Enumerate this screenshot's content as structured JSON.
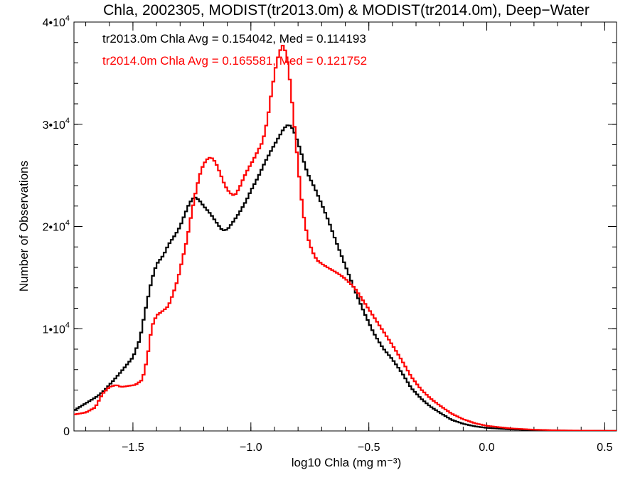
{
  "chart_data": {
    "type": "line",
    "title": "Chla, 2002305, MODIST(tr2013.0m) & MODIST(tr2014.0m), Deep−Water",
    "xlabel": "log10 Chla (mg m⁻³)",
    "ylabel": "Number of Observations",
    "xlim": [
      -1.75,
      0.55
    ],
    "ylim": [
      0,
      40000
    ],
    "xticks": [
      -1.5,
      -1.0,
      -0.5,
      0.0,
      0.5
    ],
    "xtick_labels": [
      "−1.5",
      "−1.0",
      "−0.5",
      "0.0",
      "0.5"
    ],
    "yticks": [
      0,
      10000,
      20000,
      30000,
      40000
    ],
    "ytick_labels": [
      {
        "mantissa": "0",
        "exp": ""
      },
      {
        "mantissa": "1•10",
        "exp": "4"
      },
      {
        "mantissa": "2•10",
        "exp": "4"
      },
      {
        "mantissa": "3•10",
        "exp": "4"
      },
      {
        "mantissa": "4•10",
        "exp": "4"
      }
    ],
    "grid": false,
    "step": true,
    "annotations": [
      {
        "text": "tr2013.0m Chla Avg = 0.154042, Med = 0.114193",
        "color": "#000000"
      },
      {
        "text": "tr2014.0m Chla Avg = 0.165581, Med = 0.121752",
        "color": "#ff0000"
      }
    ],
    "series": [
      {
        "color": "#000000",
        "points": [
          [
            -1.75,
            2000
          ],
          [
            -1.7,
            2700
          ],
          [
            -1.65,
            3400
          ],
          [
            -1.62,
            4000
          ],
          [
            -1.58,
            5000
          ],
          [
            -1.55,
            5800
          ],
          [
            -1.5,
            7200
          ],
          [
            -1.47,
            9000
          ],
          [
            -1.45,
            11500
          ],
          [
            -1.42,
            14800
          ],
          [
            -1.4,
            16300
          ],
          [
            -1.37,
            17200
          ],
          [
            -1.35,
            18200
          ],
          [
            -1.32,
            19200
          ],
          [
            -1.3,
            20000
          ],
          [
            -1.28,
            21200
          ],
          [
            -1.26,
            22300
          ],
          [
            -1.24,
            22900
          ],
          [
            -1.22,
            22600
          ],
          [
            -1.2,
            22000
          ],
          [
            -1.17,
            21200
          ],
          [
            -1.14,
            20200
          ],
          [
            -1.12,
            19600
          ],
          [
            -1.1,
            19700
          ],
          [
            -1.08,
            20300
          ],
          [
            -1.05,
            21300
          ],
          [
            -1.02,
            22500
          ],
          [
            -1.0,
            23500
          ],
          [
            -0.97,
            24800
          ],
          [
            -0.94,
            26300
          ],
          [
            -0.91,
            27600
          ],
          [
            -0.88,
            28800
          ],
          [
            -0.86,
            29600
          ],
          [
            -0.84,
            30000
          ],
          [
            -0.82,
            29500
          ],
          [
            -0.8,
            28200
          ],
          [
            -0.78,
            26700
          ],
          [
            -0.76,
            25200
          ],
          [
            -0.73,
            23800
          ],
          [
            -0.7,
            22200
          ],
          [
            -0.67,
            20500
          ],
          [
            -0.64,
            18600
          ],
          [
            -0.6,
            16200
          ],
          [
            -0.56,
            13800
          ],
          [
            -0.52,
            11600
          ],
          [
            -0.48,
            9600
          ],
          [
            -0.44,
            8100
          ],
          [
            -0.4,
            7000
          ],
          [
            -0.36,
            5700
          ],
          [
            -0.32,
            4200
          ],
          [
            -0.28,
            3200
          ],
          [
            -0.24,
            2400
          ],
          [
            -0.2,
            1800
          ],
          [
            -0.15,
            1100
          ],
          [
            -0.1,
            700
          ],
          [
            -0.05,
            450
          ],
          [
            0.0,
            300
          ],
          [
            0.1,
            150
          ],
          [
            0.2,
            80
          ],
          [
            0.3,
            40
          ],
          [
            0.4,
            20
          ],
          [
            0.55,
            10
          ]
        ]
      },
      {
        "color": "#ff0000",
        "points": [
          [
            -1.75,
            1600
          ],
          [
            -1.7,
            1800
          ],
          [
            -1.66,
            2300
          ],
          [
            -1.63,
            3600
          ],
          [
            -1.6,
            4300
          ],
          [
            -1.57,
            4500
          ],
          [
            -1.55,
            4300
          ],
          [
            -1.52,
            4400
          ],
          [
            -1.49,
            4500
          ],
          [
            -1.46,
            5000
          ],
          [
            -1.44,
            7000
          ],
          [
            -1.42,
            10200
          ],
          [
            -1.4,
            11300
          ],
          [
            -1.37,
            11800
          ],
          [
            -1.35,
            12200
          ],
          [
            -1.33,
            13400
          ],
          [
            -1.31,
            14800
          ],
          [
            -1.29,
            16800
          ],
          [
            -1.27,
            18800
          ],
          [
            -1.25,
            21500
          ],
          [
            -1.23,
            23800
          ],
          [
            -1.21,
            25600
          ],
          [
            -1.19,
            26500
          ],
          [
            -1.17,
            26800
          ],
          [
            -1.15,
            26300
          ],
          [
            -1.13,
            25200
          ],
          [
            -1.11,
            24000
          ],
          [
            -1.09,
            23300
          ],
          [
            -1.07,
            23000
          ],
          [
            -1.05,
            23700
          ],
          [
            -1.03,
            24800
          ],
          [
            -1.01,
            25700
          ],
          [
            -0.99,
            26500
          ],
          [
            -0.97,
            27400
          ],
          [
            -0.95,
            28300
          ],
          [
            -0.93,
            30400
          ],
          [
            -0.91,
            33500
          ],
          [
            -0.89,
            36200
          ],
          [
            -0.87,
            37600
          ],
          [
            -0.86,
            37800
          ],
          [
            -0.84,
            35500
          ],
          [
            -0.82,
            31000
          ],
          [
            -0.8,
            26000
          ],
          [
            -0.78,
            21500
          ],
          [
            -0.76,
            19000
          ],
          [
            -0.74,
            17600
          ],
          [
            -0.72,
            16700
          ],
          [
            -0.69,
            16200
          ],
          [
            -0.66,
            15800
          ],
          [
            -0.63,
            15400
          ],
          [
            -0.6,
            14900
          ],
          [
            -0.56,
            14000
          ],
          [
            -0.52,
            12600
          ],
          [
            -0.48,
            11200
          ],
          [
            -0.44,
            9800
          ],
          [
            -0.4,
            8400
          ],
          [
            -0.36,
            6900
          ],
          [
            -0.32,
            5300
          ],
          [
            -0.28,
            4100
          ],
          [
            -0.24,
            3200
          ],
          [
            -0.2,
            2500
          ],
          [
            -0.15,
            1700
          ],
          [
            -0.1,
            1150
          ],
          [
            -0.05,
            750
          ],
          [
            0.0,
            500
          ],
          [
            0.1,
            250
          ],
          [
            0.2,
            120
          ],
          [
            0.3,
            60
          ],
          [
            0.4,
            30
          ],
          [
            0.55,
            10
          ]
        ]
      }
    ]
  }
}
